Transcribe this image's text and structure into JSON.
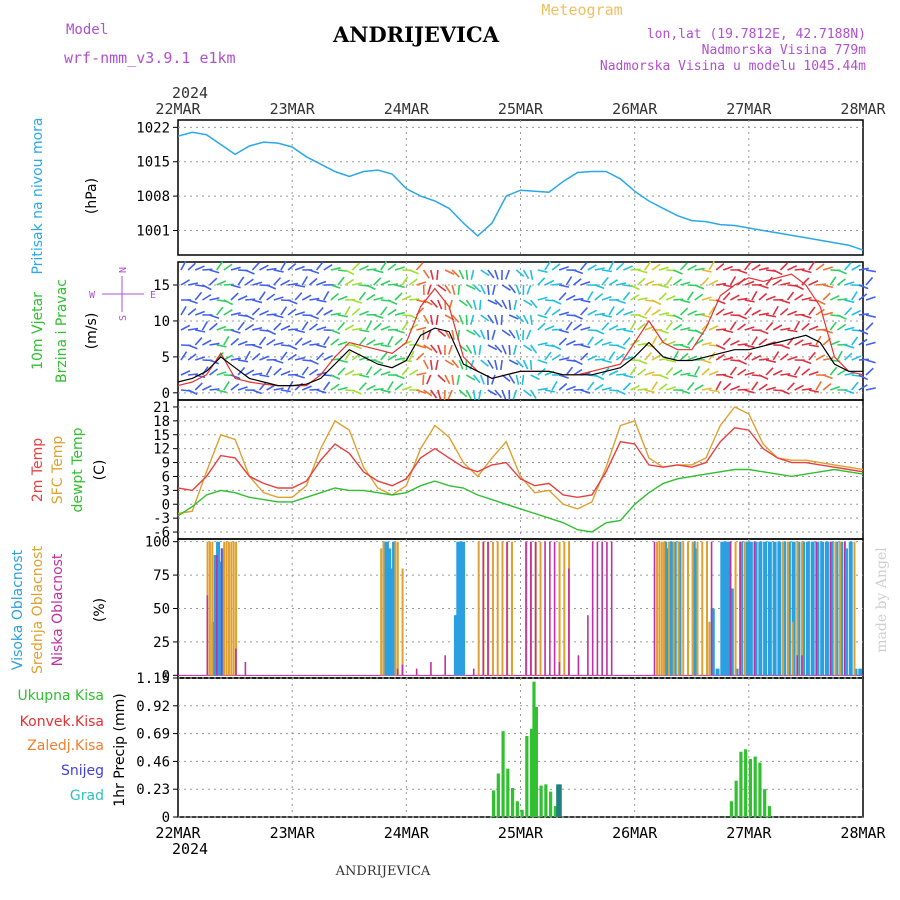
{
  "header": {
    "model_label": "Model",
    "model_value": "wrf-nmm_v3.9.1 e1km",
    "city": "ANDRIJEVICA",
    "product": "Meteogram",
    "lonlat": "lon,lat (19.7812E, 42.7188N)",
    "elevation": "Nadmorska Visina 779m",
    "elevation_model": "Nadmorska Visina u modelu 1045.44m",
    "footer_city": "ANDRIJEVICA",
    "credit": "made by Angel"
  },
  "colors": {
    "pressure": "#2aa8e8",
    "wind_speed": "#000000",
    "wind_gust": "#e83030",
    "temp2m": "#e84040",
    "sfc_temp": "#e0a030",
    "dewpoint": "#30c030",
    "high_cloud": "#2aa0e0",
    "mid_cloud": "#e0a030",
    "low_cloud": "#c030a0",
    "total_precip": "#30c030",
    "conv_precip": "#e83030",
    "frozen": "#f08030",
    "snow": "#4040e0",
    "hail": "#30c0c0",
    "purple_text": "#b050d0",
    "orange_text": "#f0c060"
  },
  "chart_data": [
    {
      "type": "line",
      "panel": "pressure",
      "ylabel": [
        "Pritisak na nivou mora",
        "(hPa)"
      ],
      "yticks": [
        1001,
        1008,
        1015,
        1022
      ],
      "ylim": [
        996,
        1023.5
      ],
      "xlim": [
        0,
        144
      ],
      "xticks": [
        "22MAR",
        "23MAR",
        "24MAR",
        "25MAR",
        "26MAR",
        "27MAR",
        "28MAR"
      ],
      "year": "2024",
      "grid": true,
      "series": [
        {
          "x": [
            0,
            3,
            6,
            9,
            12,
            15,
            18,
            21,
            24,
            27,
            30,
            33,
            36,
            39,
            42,
            45,
            48,
            51,
            54,
            57,
            60,
            63,
            66,
            69,
            72,
            75,
            78,
            81,
            84,
            87,
            90,
            93,
            96,
            99,
            102,
            105,
            108,
            111,
            114,
            117,
            120,
            123,
            126,
            129,
            132,
            135,
            138,
            141,
            144
          ],
          "y": [
            1020.2,
            1021.0,
            1020.5,
            1018.5,
            1016.5,
            1018.2,
            1019.0,
            1018.8,
            1018.0,
            1016.0,
            1014.5,
            1013.0,
            1012.0,
            1013.0,
            1013.3,
            1012.5,
            1009.5,
            1008.0,
            1007.0,
            1005.5,
            1002.5,
            999.9,
            1002.5,
            1008.0,
            1009.2,
            1009.0,
            1008.8,
            1011.0,
            1012.8,
            1013.0,
            1013.0,
            1011.5,
            1009.0,
            1007.0,
            1005.5,
            1004.0,
            1003.0,
            1002.8,
            1002.2,
            1002.0,
            1001.5,
            1001.0,
            1000.5,
            1000.0,
            999.5,
            999.0,
            998.5,
            998.0,
            997.0
          ]
        }
      ]
    },
    {
      "type": "line",
      "panel": "wind",
      "ylabel": [
        "10m Vjetar",
        "Brzina i Pravac",
        "(m/s)"
      ],
      "compass": [
        "N",
        "S",
        "W",
        "E"
      ],
      "yticks": [
        0,
        5,
        10,
        15
      ],
      "ylim": [
        -1,
        18.2
      ],
      "series": [
        {
          "name": "speed",
          "x": [
            0,
            3,
            6,
            9,
            12,
            15,
            18,
            21,
            24,
            27,
            30,
            33,
            36,
            39,
            42,
            45,
            48,
            51,
            54,
            57,
            60,
            63,
            66,
            69,
            72,
            75,
            78,
            81,
            84,
            87,
            90,
            93,
            96,
            99,
            102,
            105,
            108,
            111,
            114,
            117,
            120,
            123,
            126,
            129,
            132,
            135,
            138,
            141,
            144
          ],
          "y": [
            1.5,
            2.0,
            3.0,
            5.0,
            3.5,
            2.0,
            1.5,
            1.0,
            1.0,
            1.2,
            2.0,
            4.0,
            6.0,
            5.0,
            4.0,
            3.5,
            4.5,
            8.0,
            9.0,
            8.5,
            4.0,
            3.0,
            2.0,
            2.5,
            3.0,
            3.0,
            3.0,
            2.5,
            2.5,
            2.5,
            3.0,
            3.5,
            5.0,
            7.0,
            5.0,
            4.5,
            4.5,
            5.0,
            5.5,
            6.0,
            6.0,
            6.5,
            7.0,
            7.5,
            8.0,
            7.0,
            4.0,
            3.0,
            3.0
          ]
        },
        {
          "name": "gust",
          "x": [
            0,
            3,
            6,
            9,
            12,
            15,
            18,
            21,
            24,
            27,
            30,
            33,
            36,
            39,
            42,
            45,
            48,
            51,
            54,
            57,
            60,
            63,
            66,
            69,
            72,
            75,
            78,
            81,
            84,
            87,
            90,
            93,
            96,
            99,
            102,
            105,
            108,
            111,
            114,
            117,
            120,
            123,
            126,
            129,
            132,
            135,
            138,
            141,
            144
          ],
          "y": [
            1.0,
            1.5,
            2.5,
            5.5,
            2.0,
            1.5,
            1.2,
            1.0,
            1.0,
            1.0,
            2.5,
            5.0,
            7.0,
            6.5,
            6.0,
            5.5,
            7.0,
            12.0,
            14.5,
            12.0,
            5.0,
            3.0,
            2.0,
            2.5,
            3.0,
            3.0,
            3.0,
            2.5,
            2.5,
            3.0,
            3.5,
            4.0,
            7.0,
            10.0,
            7.0,
            6.0,
            6.0,
            9.0,
            13.5,
            15.0,
            16.0,
            15.5,
            16.0,
            16.5,
            15.0,
            12.0,
            5.0,
            3.0,
            2.5
          ]
        }
      ]
    },
    {
      "type": "line",
      "panel": "temperature",
      "ylabel": [
        "2m Temp",
        "SFC Temp",
        "dewpt Temp",
        "(C)"
      ],
      "yticks": [
        -6,
        -3,
        0,
        3,
        6,
        9,
        12,
        15,
        18,
        21
      ],
      "ylim": [
        -7.5,
        22.5
      ],
      "series": [
        {
          "name": "2m Temp",
          "x": [
            0,
            3,
            6,
            9,
            12,
            15,
            18,
            21,
            24,
            27,
            30,
            33,
            36,
            39,
            42,
            45,
            48,
            51,
            54,
            57,
            60,
            63,
            66,
            69,
            72,
            75,
            78,
            81,
            84,
            87,
            90,
            93,
            96,
            99,
            102,
            105,
            108,
            111,
            114,
            117,
            120,
            123,
            126,
            129,
            132,
            135,
            138,
            141,
            144
          ],
          "y": [
            3.5,
            3.0,
            6.0,
            10.5,
            10.0,
            6.0,
            4.5,
            3.5,
            3.5,
            5.0,
            9.5,
            13.0,
            11.0,
            7.0,
            5.0,
            4.0,
            5.5,
            10.0,
            12.0,
            10.0,
            8.0,
            7.0,
            8.5,
            9.0,
            5.5,
            4.0,
            4.5,
            2.0,
            1.5,
            2.0,
            7.0,
            13.5,
            13.0,
            8.5,
            8.0,
            8.5,
            8.0,
            9.0,
            13.5,
            16.5,
            16.0,
            12.0,
            10.0,
            9.0,
            9.0,
            8.5,
            8.0,
            7.5,
            7.0
          ]
        },
        {
          "name": "SFC Temp",
          "x": [
            0,
            3,
            6,
            9,
            12,
            15,
            18,
            21,
            24,
            27,
            30,
            33,
            36,
            39,
            42,
            45,
            48,
            51,
            54,
            57,
            60,
            63,
            66,
            69,
            72,
            75,
            78,
            81,
            84,
            87,
            90,
            93,
            96,
            99,
            102,
            105,
            108,
            111,
            114,
            117,
            120,
            123,
            126,
            129,
            132,
            135,
            138,
            141,
            144
          ],
          "y": [
            -2.0,
            -1.5,
            7.0,
            15.0,
            14.0,
            6.0,
            2.5,
            1.5,
            1.5,
            4.0,
            12.0,
            18.0,
            16.0,
            8.0,
            3.5,
            2.0,
            4.0,
            12.0,
            17.0,
            14.5,
            9.0,
            6.0,
            10.0,
            13.5,
            6.0,
            2.5,
            3.0,
            0.0,
            -1.0,
            0.5,
            8.0,
            17.0,
            18.0,
            10.0,
            8.0,
            8.5,
            8.5,
            10.0,
            17.0,
            21.0,
            19.5,
            13.0,
            10.0,
            9.5,
            9.5,
            9.0,
            8.5,
            8.0,
            7.5
          ]
        },
        {
          "name": "dewpt Temp",
          "x": [
            0,
            3,
            6,
            9,
            12,
            15,
            18,
            21,
            24,
            27,
            30,
            33,
            36,
            39,
            42,
            45,
            48,
            51,
            54,
            57,
            60,
            63,
            66,
            69,
            72,
            75,
            78,
            81,
            84,
            87,
            90,
            93,
            96,
            99,
            102,
            105,
            108,
            111,
            114,
            117,
            120,
            123,
            126,
            129,
            132,
            135,
            138,
            141,
            144
          ],
          "y": [
            -2.5,
            -0.5,
            2.0,
            3.0,
            2.5,
            1.5,
            1.0,
            0.5,
            0.5,
            1.5,
            2.5,
            3.5,
            3.0,
            3.0,
            2.5,
            2.0,
            2.5,
            4.0,
            5.0,
            4.0,
            3.5,
            2.0,
            1.0,
            0.0,
            -1.0,
            -2.0,
            -3.0,
            -4.0,
            -5.5,
            -6.0,
            -4.0,
            -3.5,
            0.0,
            2.5,
            4.5,
            5.5,
            6.0,
            6.5,
            7.0,
            7.5,
            7.5,
            7.0,
            6.5,
            6.0,
            6.5,
            7.0,
            7.5,
            7.0,
            6.5
          ]
        }
      ]
    },
    {
      "type": "bar",
      "panel": "clouds",
      "ylabel": [
        "Visoka Oblacnost",
        "Srednja Oblacnost",
        "Niska Oblacnost",
        "(%)"
      ],
      "yticks": [
        0,
        25,
        50,
        75,
        100
      ],
      "ylim": [
        -2,
        102
      ],
      "series": [
        {
          "name": "high",
          "x": [
            7,
            7.5,
            8,
            8.5,
            9,
            43,
            43.5,
            44,
            44.5,
            45,
            58,
            58.5,
            59,
            59.5,
            102,
            102.5,
            103,
            103.5,
            104,
            105,
            108,
            108.5,
            112,
            113,
            114,
            114.5,
            115,
            115.5,
            116,
            117,
            118,
            119,
            119.5,
            120,
            121,
            122,
            123,
            124,
            125,
            126,
            127,
            128,
            129,
            130,
            131,
            132,
            133,
            134,
            135,
            136,
            137,
            138,
            139,
            140,
            141,
            142,
            143
          ],
          "y": [
            40,
            90,
            100,
            85,
            95,
            100,
            100,
            95,
            80,
            100,
            45,
            100,
            100,
            100,
            100,
            95,
            100,
            100,
            100,
            100,
            100,
            95,
            50,
            5,
            100,
            100,
            100,
            100,
            65,
            5,
            100,
            100,
            100,
            100,
            100,
            100,
            100,
            100,
            100,
            100,
            100,
            100,
            100,
            100,
            100,
            100,
            100,
            100,
            100,
            100,
            100,
            100,
            100,
            95,
            100,
            5,
            5
          ]
        },
        {
          "name": "mid",
          "x": [
            6,
            6.5,
            7,
            9.5,
            10,
            10.5,
            11,
            11.5,
            12,
            42.5,
            43,
            45.5,
            46,
            47,
            63,
            64,
            65,
            66,
            67,
            68,
            69,
            70,
            73,
            74,
            75,
            76,
            80,
            81,
            82,
            100.5,
            101,
            101.5,
            102,
            103,
            104,
            105,
            106,
            107,
            108,
            109,
            110,
            111,
            111.5,
            117,
            118,
            119,
            127,
            128,
            129,
            130,
            131,
            138,
            139,
            140,
            142
          ],
          "y": [
            100,
            100,
            100,
            100,
            100,
            100,
            100,
            100,
            100,
            95,
            100,
            100,
            100,
            80,
            100,
            100,
            100,
            100,
            100,
            100,
            100,
            100,
            100,
            100,
            100,
            100,
            100,
            100,
            100,
            100,
            100,
            100,
            100,
            100,
            100,
            100,
            100,
            100,
            100,
            100,
            100,
            100,
            40,
            100,
            100,
            100,
            100,
            100,
            40,
            100,
            100,
            100,
            100,
            100,
            100
          ]
        },
        {
          "name": "low",
          "x": [
            6,
            8,
            9,
            12,
            14,
            46,
            47,
            50,
            53,
            56,
            62,
            64,
            65,
            69,
            73,
            74,
            75,
            77,
            78,
            79,
            80,
            82,
            84,
            86,
            87,
            88,
            89,
            90,
            91,
            100,
            112,
            116,
            118,
            121,
            130,
            131,
            134,
            137,
            140
          ],
          "y": [
            60,
            90,
            95,
            20,
            10,
            5,
            8,
            5,
            10,
            15,
            5,
            100,
            100,
            100,
            100,
            100,
            100,
            100,
            100,
            100,
            10,
            80,
            15,
            45,
            100,
            100,
            100,
            100,
            100,
            100,
            100,
            100,
            100,
            100,
            15,
            15,
            100,
            100,
            100
          ]
        }
      ]
    },
    {
      "type": "bar",
      "panel": "precip",
      "ylabel": [
        "1hr Precip (mm)"
      ],
      "legend": [
        "Ukupna Kisa",
        "Konvek.Kisa",
        "Zaledj.Kisa",
        "Snijeg",
        "Grad"
      ],
      "yticks": [
        0,
        0.23,
        0.46,
        0.69,
        0.92,
        1.15
      ],
      "ylim": [
        0,
        1.15
      ],
      "series": [
        {
          "name": "Ukupna Kisa",
          "x": [
            66,
            67,
            68,
            69,
            70,
            71,
            72,
            73,
            74,
            74.5,
            75,
            76,
            77,
            78,
            79,
            116,
            117,
            118,
            119,
            120,
            121,
            122,
            123,
            124
          ],
          "y": [
            0.22,
            0.36,
            0.71,
            0.4,
            0.24,
            0.13,
            0.06,
            0.67,
            0.73,
            1.12,
            0.91,
            0.26,
            0.27,
            0.21,
            0.09,
            0.13,
            0.3,
            0.54,
            0.56,
            0.48,
            0.5,
            0.45,
            0.23,
            0.09
          ]
        },
        {
          "name": "Grad",
          "x": [
            79.5,
            80
          ],
          "y": [
            0.27,
            0.27
          ]
        }
      ]
    }
  ]
}
